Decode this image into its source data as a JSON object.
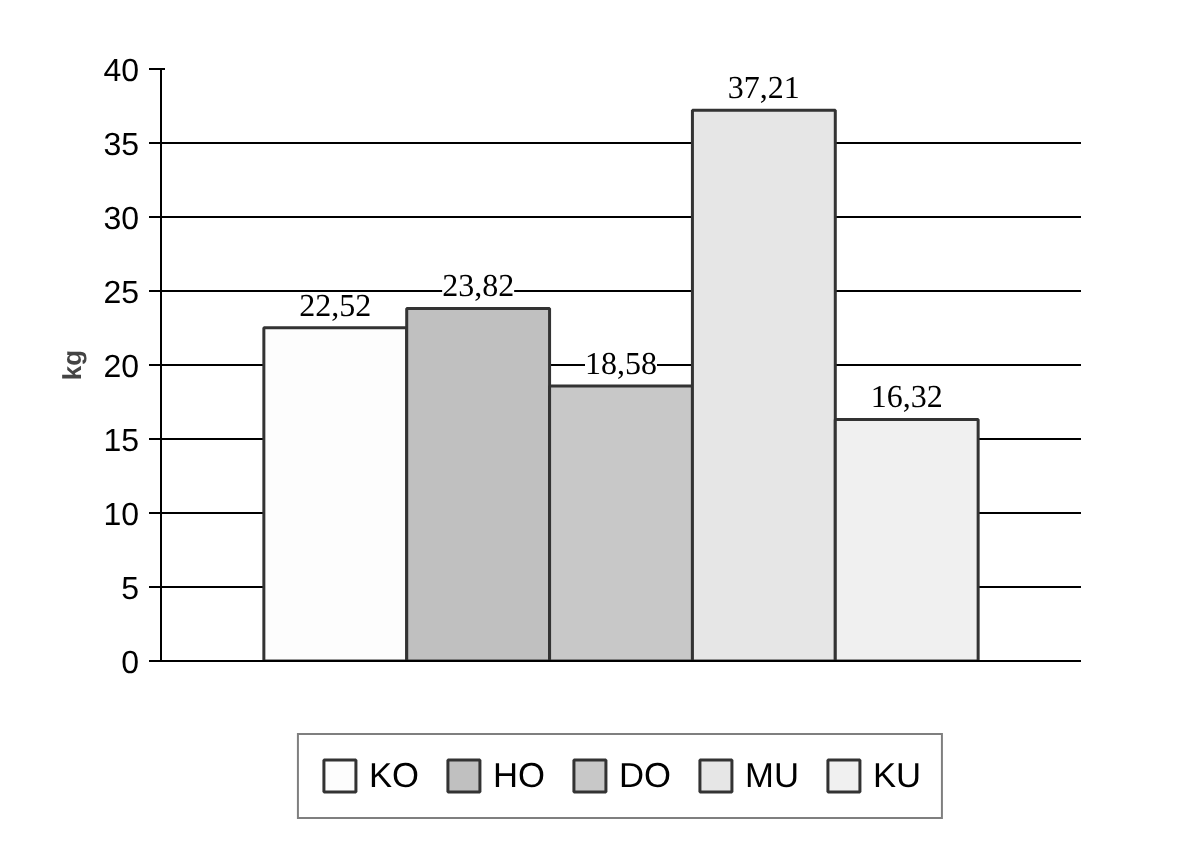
{
  "chart_data": {
    "type": "bar",
    "categories": [
      null
    ],
    "ylabel": "kg",
    "ylim": [
      0,
      40
    ],
    "yticks": [
      0,
      5,
      10,
      15,
      20,
      25,
      30,
      35,
      40
    ],
    "grid": "y",
    "legend": "bottom",
    "series": [
      {
        "name": "KO",
        "color": "#fdfdfd",
        "values": [
          22.52
        ],
        "value_labels": [
          "22,52"
        ]
      },
      {
        "name": "HO",
        "color": "#c0c0c0",
        "values": [
          23.82
        ],
        "value_labels": [
          "23,82"
        ]
      },
      {
        "name": "DO",
        "color": "#c8c8c8",
        "values": [
          18.58
        ],
        "value_labels": [
          "18,58"
        ]
      },
      {
        "name": "MU",
        "color": "#e6e6e6",
        "values": [
          37.21
        ],
        "value_labels": [
          "37,21"
        ]
      },
      {
        "name": "KU",
        "color": "#f0f0f0",
        "values": [
          16.32
        ],
        "value_labels": [
          "16,32"
        ]
      }
    ]
  }
}
